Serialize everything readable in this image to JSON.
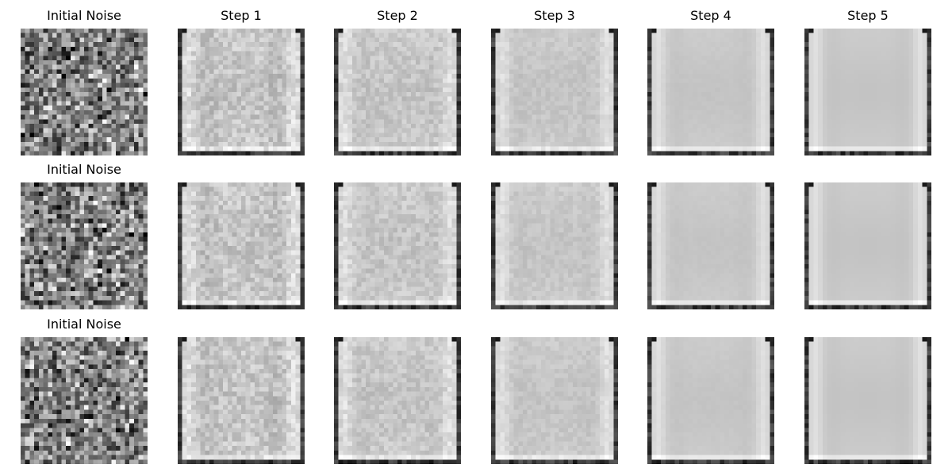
{
  "figure": {
    "rows": [
      {
        "titles": [
          "Initial Noise",
          "Step 1",
          "Step 2",
          "Step 3",
          "Step 4",
          "Step 5"
        ],
        "images": [
          {
            "kind": "noise",
            "seed": 11
          },
          {
            "kind": "denoised",
            "step": 1,
            "seed": 101
          },
          {
            "kind": "denoised",
            "step": 2,
            "seed": 102
          },
          {
            "kind": "denoised",
            "step": 3,
            "seed": 103
          },
          {
            "kind": "denoised",
            "step": 4,
            "seed": 104
          },
          {
            "kind": "denoised",
            "step": 5,
            "seed": 105
          }
        ]
      },
      {
        "titles": [
          "Initial Noise",
          "",
          "",
          "",
          "",
          ""
        ],
        "images": [
          {
            "kind": "noise",
            "seed": 22
          },
          {
            "kind": "denoised",
            "step": 1,
            "seed": 201
          },
          {
            "kind": "denoised",
            "step": 2,
            "seed": 202
          },
          {
            "kind": "denoised",
            "step": 3,
            "seed": 203
          },
          {
            "kind": "denoised",
            "step": 4,
            "seed": 204
          },
          {
            "kind": "denoised",
            "step": 5,
            "seed": 205
          }
        ]
      },
      {
        "titles": [
          "Initial Noise",
          "",
          "",
          "",
          "",
          ""
        ],
        "images": [
          {
            "kind": "noise",
            "seed": 33
          },
          {
            "kind": "denoised",
            "step": 1,
            "seed": 301
          },
          {
            "kind": "denoised",
            "step": 2,
            "seed": 302
          },
          {
            "kind": "denoised",
            "step": 3,
            "seed": 303
          },
          {
            "kind": "denoised",
            "step": 4,
            "seed": 304
          },
          {
            "kind": "denoised",
            "step": 5,
            "seed": 305
          }
        ]
      }
    ],
    "image_resolution": 28,
    "colormap": "gray"
  }
}
